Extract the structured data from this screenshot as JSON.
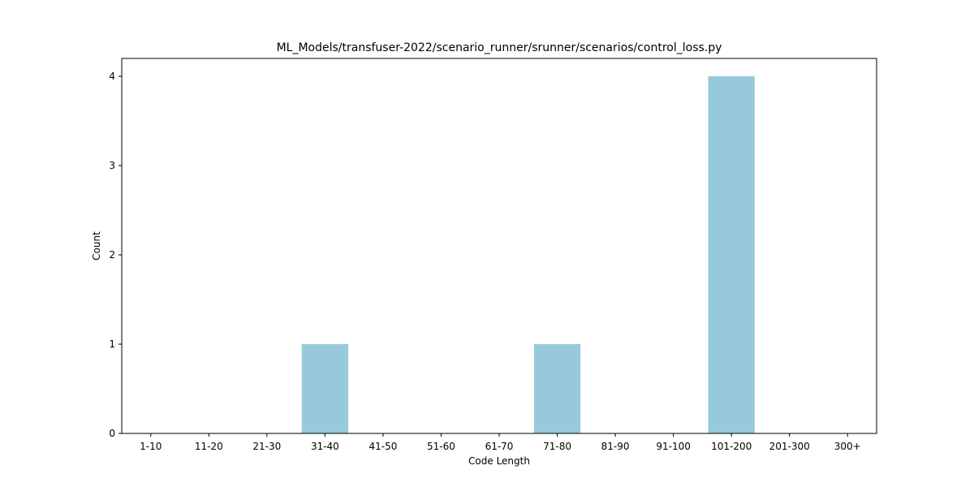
{
  "chart_data": {
    "type": "bar",
    "title": "ML_Models/transfuser-2022/scenario_runner/srunner/scenarios/control_loss.py",
    "xlabel": "Code Length",
    "ylabel": "Count",
    "categories": [
      "1-10",
      "11-20",
      "21-30",
      "31-40",
      "41-50",
      "51-60",
      "61-70",
      "71-80",
      "81-90",
      "91-100",
      "101-200",
      "201-300",
      "300+"
    ],
    "values": [
      0,
      0,
      0,
      1,
      0,
      0,
      0,
      1,
      0,
      0,
      4,
      0,
      0
    ],
    "ylim": [
      0,
      4.2
    ],
    "yticks": [
      0,
      1,
      2,
      3,
      4
    ],
    "grid": false,
    "bar_color": "#96c9dc"
  }
}
